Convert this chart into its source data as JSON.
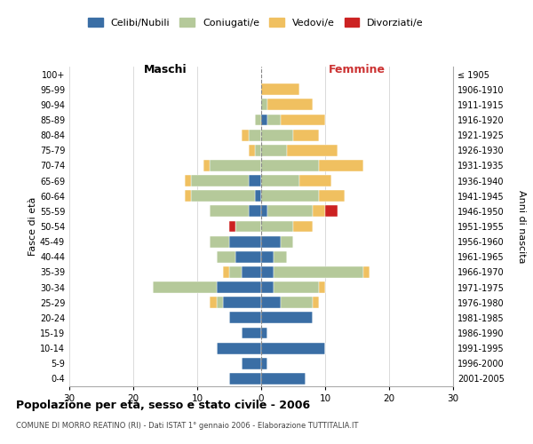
{
  "age_groups": [
    "0-4",
    "5-9",
    "10-14",
    "15-19",
    "20-24",
    "25-29",
    "30-34",
    "35-39",
    "40-44",
    "45-49",
    "50-54",
    "55-59",
    "60-64",
    "65-69",
    "70-74",
    "75-79",
    "80-84",
    "85-89",
    "90-94",
    "95-99",
    "100+"
  ],
  "birth_years": [
    "2001-2005",
    "1996-2000",
    "1991-1995",
    "1986-1990",
    "1981-1985",
    "1976-1980",
    "1971-1975",
    "1966-1970",
    "1961-1965",
    "1956-1960",
    "1951-1955",
    "1946-1950",
    "1941-1945",
    "1936-1940",
    "1931-1935",
    "1926-1930",
    "1921-1925",
    "1916-1920",
    "1911-1915",
    "1906-1910",
    "≤ 1905"
  ],
  "males": {
    "celibi": [
      5,
      3,
      7,
      3,
      5,
      6,
      7,
      3,
      4,
      5,
      0,
      2,
      1,
      2,
      0,
      0,
      0,
      0,
      0,
      0,
      0
    ],
    "coniugati": [
      0,
      0,
      0,
      0,
      0,
      1,
      10,
      2,
      3,
      3,
      4,
      6,
      10,
      9,
      8,
      1,
      2,
      1,
      0,
      0,
      0
    ],
    "vedovi": [
      0,
      0,
      0,
      0,
      0,
      1,
      0,
      1,
      0,
      0,
      0,
      0,
      1,
      1,
      1,
      1,
      1,
      0,
      0,
      0,
      0
    ],
    "divorziati": [
      0,
      0,
      0,
      0,
      0,
      0,
      0,
      0,
      0,
      0,
      1,
      0,
      0,
      0,
      0,
      0,
      0,
      0,
      0,
      0,
      0
    ]
  },
  "females": {
    "nubili": [
      7,
      1,
      10,
      1,
      8,
      3,
      2,
      2,
      2,
      3,
      0,
      1,
      0,
      0,
      0,
      0,
      0,
      1,
      0,
      0,
      0
    ],
    "coniugate": [
      0,
      0,
      0,
      0,
      0,
      5,
      7,
      14,
      2,
      2,
      5,
      7,
      9,
      6,
      9,
      4,
      5,
      2,
      1,
      0,
      0
    ],
    "vedove": [
      0,
      0,
      0,
      0,
      0,
      1,
      1,
      1,
      0,
      0,
      3,
      2,
      4,
      5,
      7,
      8,
      4,
      7,
      7,
      6,
      0
    ],
    "divorziate": [
      0,
      0,
      0,
      0,
      0,
      0,
      0,
      0,
      0,
      0,
      0,
      2,
      0,
      0,
      0,
      0,
      0,
      0,
      0,
      0,
      0
    ]
  },
  "color_celibi": "#3a6ea5",
  "color_coniugati": "#b5c99a",
  "color_vedovi": "#f0c060",
  "color_divorziati": "#cc2222",
  "xlim": 30,
  "title": "Popolazione per età, sesso e stato civile - 2006",
  "subtitle": "COMUNE DI MORRO REATINO (RI) - Dati ISTAT 1° gennaio 2006 - Elaborazione TUTTITALIA.IT",
  "ylabel_left": "Fasce di età",
  "ylabel_right": "Anni di nascita",
  "label_maschi": "Maschi",
  "label_femmine": "Femmine",
  "legend_celibi": "Celibi/Nubili",
  "legend_coniugati": "Coniugati/e",
  "legend_vedovi": "Vedovi/e",
  "legend_divorziati": "Divorziati/e"
}
